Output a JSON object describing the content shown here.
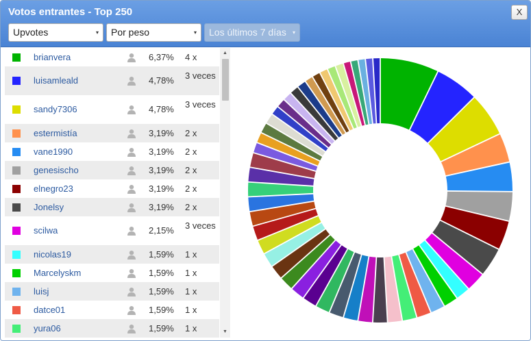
{
  "window": {
    "title": "Votos entrantes - Top 250",
    "close_label": "X"
  },
  "filters": {
    "type": {
      "value": "Upvotes",
      "caret": "▾"
    },
    "sort": {
      "value": "Por peso",
      "caret": "▾"
    },
    "period": {
      "value": "Los últimos 7 días",
      "caret": "▾"
    }
  },
  "icons": {
    "user": "user-icon",
    "close": "close-icon",
    "caret": "caret-down-icon"
  },
  "voters": [
    {
      "name": "brianvera",
      "pct": "6,37%",
      "count": "4 x",
      "color": "#00b300"
    },
    {
      "name": "luisamleald",
      "pct": "4,78%",
      "count": "3 veces",
      "color": "#2424ff"
    },
    {
      "name": "sandy7306",
      "pct": "4,78%",
      "count": "3 veces",
      "color": "#dddd00"
    },
    {
      "name": "estermistía",
      "pct": "3,19%",
      "count": "2 x",
      "color": "#ff914d"
    },
    {
      "name": "vane1990",
      "pct": "3,19%",
      "count": "2 x",
      "color": "#268cf2"
    },
    {
      "name": "genesischo",
      "pct": "3,19%",
      "count": "2 x",
      "color": "#a0a0a0"
    },
    {
      "name": "elnegro23",
      "pct": "3,19%",
      "count": "2 x",
      "color": "#8b0000"
    },
    {
      "name": "Jonelsy",
      "pct": "3,19%",
      "count": "2 x",
      "color": "#4a4a4a"
    },
    {
      "name": "scilwa",
      "pct": "2,15%",
      "count": "3 veces",
      "color": "#e000e0"
    },
    {
      "name": "nicolas19",
      "pct": "1,59%",
      "count": "1 x",
      "color": "#33ffff"
    },
    {
      "name": "Marcelyskm",
      "pct": "1,59%",
      "count": "1 x",
      "color": "#00d000"
    },
    {
      "name": "luisj",
      "pct": "1,59%",
      "count": "1 x",
      "color": "#6fb3ee"
    },
    {
      "name": "datce01",
      "pct": "1,59%",
      "count": "1 x",
      "color": "#ef5a45"
    },
    {
      "name": "yura06",
      "pct": "1,59%",
      "count": "1 x",
      "color": "#44ee77"
    }
  ],
  "chart_data": {
    "type": "pie",
    "variant": "donut",
    "legend": "none",
    "start": "top",
    "direction": "clockwise",
    "slices": [
      {
        "label": "brianvera",
        "value": 6.37,
        "color": "#00b300"
      },
      {
        "label": "luisamleald",
        "value": 4.78,
        "color": "#2424ff"
      },
      {
        "label": "sandy7306",
        "value": 4.78,
        "color": "#dddd00"
      },
      {
        "label": "estermistía",
        "value": 3.19,
        "color": "#ff914d"
      },
      {
        "label": "vane1990",
        "value": 3.19,
        "color": "#268cf2"
      },
      {
        "label": "genesischo",
        "value": 3.19,
        "color": "#a0a0a0"
      },
      {
        "label": "elnegro23",
        "value": 3.19,
        "color": "#8b0000"
      },
      {
        "label": "Jonelsy",
        "value": 3.19,
        "color": "#4a4a4a"
      },
      {
        "label": "scilwa",
        "value": 2.15,
        "color": "#e000e0"
      },
      {
        "label": "nicolas19",
        "value": 1.59,
        "color": "#33ffff"
      },
      {
        "label": "Marcelyskm",
        "value": 1.59,
        "color": "#00d000"
      },
      {
        "label": "luisj",
        "value": 1.59,
        "color": "#6fb3ee"
      },
      {
        "label": "datce01",
        "value": 1.59,
        "color": "#ef5a45"
      },
      {
        "label": "yura06",
        "value": 1.59,
        "color": "#44ee77"
      },
      {
        "value": 1.59,
        "color": "#f5c0cb"
      },
      {
        "value": 1.59,
        "color": "#4a3f4f"
      },
      {
        "value": 1.59,
        "color": "#c010b8"
      },
      {
        "value": 1.59,
        "color": "#167fc8"
      },
      {
        "value": 1.59,
        "color": "#485a6e"
      },
      {
        "value": 1.59,
        "color": "#30b860"
      },
      {
        "value": 1.59,
        "color": "#5a0090"
      },
      {
        "value": 1.59,
        "color": "#8a20e0"
      },
      {
        "value": 1.59,
        "color": "#3c8a1e"
      },
      {
        "value": 1.59,
        "color": "#6a3412"
      },
      {
        "value": 1.59,
        "color": "#96f0e4"
      },
      {
        "value": 1.59,
        "color": "#d0dc20"
      },
      {
        "value": 1.59,
        "color": "#b51a1a"
      },
      {
        "value": 1.59,
        "color": "#b84812"
      },
      {
        "value": 1.59,
        "color": "#2a74e0"
      },
      {
        "value": 1.59,
        "color": "#36d07a"
      },
      {
        "value": 1.59,
        "color": "#5a30a8"
      },
      {
        "value": 1.59,
        "color": "#9e3c4a"
      },
      {
        "value": 1.15,
        "color": "#7a5ae0"
      },
      {
        "value": 1.15,
        "color": "#e8a020"
      },
      {
        "value": 1.15,
        "color": "#5c7a40"
      },
      {
        "value": 1.15,
        "color": "#dcdcd2"
      },
      {
        "value": 1.0,
        "color": "#3040c8"
      },
      {
        "value": 1.0,
        "color": "#6a2e8a"
      },
      {
        "value": 1.0,
        "color": "#c8b4f0"
      },
      {
        "value": 1.0,
        "color": "#3a3a3a"
      },
      {
        "value": 1.0,
        "color": "#1c3c8a"
      },
      {
        "value": 0.9,
        "color": "#d09a50"
      },
      {
        "value": 0.9,
        "color": "#704010"
      },
      {
        "value": 0.9,
        "color": "#f0c870"
      },
      {
        "value": 0.9,
        "color": "#a8e878"
      },
      {
        "value": 0.9,
        "color": "#d8f0a0"
      },
      {
        "value": 0.8,
        "color": "#c81878"
      },
      {
        "value": 0.8,
        "color": "#38a878"
      },
      {
        "value": 0.8,
        "color": "#6ab0e0"
      },
      {
        "value": 0.8,
        "color": "#5a5ae0"
      },
      {
        "value": 0.8,
        "color": "#2828c8"
      }
    ]
  }
}
